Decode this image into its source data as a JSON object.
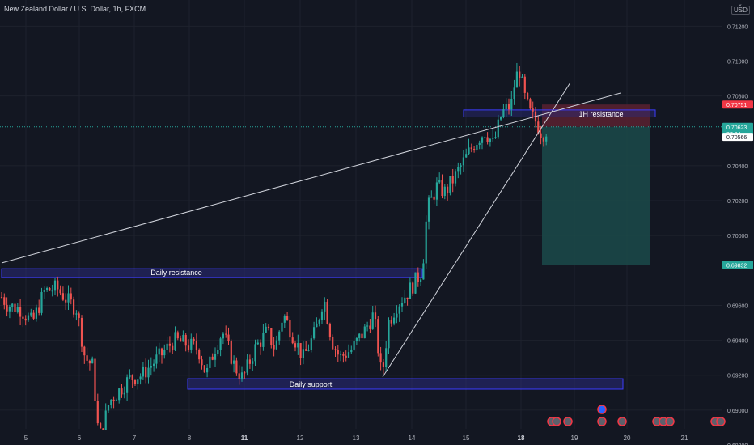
{
  "header": {
    "title": "New Zealand Dollar / U.S. Dollar, 1h, FXCM",
    "currency_button": "USD"
  },
  "colors": {
    "background": "#131722",
    "grid": "#1e222d",
    "up": "#26a69a",
    "down": "#ef5350",
    "zone_border": "#3d3dff",
    "zone_fill": "#2a2a7a",
    "stop_fill": "#5b2130",
    "target_fill": "#1b4a4a",
    "text": "#b2b5be",
    "line": "#d1d4dc"
  },
  "price_axis": {
    "min": 0.688,
    "max": 0.7135,
    "ticks": [
      "0.71200",
      "0.71000",
      "0.70800",
      "0.70400",
      "0.70200",
      "0.70000",
      "0.69600",
      "0.69400",
      "0.69200",
      "0.69000",
      "0.68800"
    ],
    "badges": [
      {
        "label": "0.70751",
        "value": 0.70751,
        "color": "#f23645",
        "sub": ""
      },
      {
        "label": "0.70623",
        "value": 0.70623,
        "color": "#26a69a",
        "sub": "37:34"
      },
      {
        "label": "0.70566",
        "value": 0.70566,
        "color": "#ffffff",
        "sub": ""
      },
      {
        "label": "0.69832",
        "value": 0.69832,
        "color": "#26a69a",
        "sub": ""
      }
    ]
  },
  "time_axis": {
    "labels": [
      "5",
      "6",
      "7",
      "8",
      "11",
      "12",
      "13",
      "14",
      "15",
      "18",
      "19",
      "20",
      "21"
    ],
    "bold": [
      "11",
      "18"
    ]
  },
  "annotations": {
    "daily_resistance": {
      "label": "Daily resistance",
      "top": 0.6981,
      "bottom": 0.6976
    },
    "hr_resistance": {
      "label": "1H resistance",
      "top": 0.7072,
      "bottom": 0.7068
    },
    "daily_support": {
      "label": "Daily support",
      "top": 0.6918,
      "bottom": 0.6912
    },
    "position": {
      "entry": 0.70623,
      "stop": 0.70751,
      "target": 0.69832
    }
  },
  "chart_data": {
    "type": "candlestick",
    "title": "New Zealand Dollar / U.S. Dollar, 1h, FXCM",
    "ylim": [
      0.688,
      0.7135
    ],
    "x_labels": [
      "5",
      "6",
      "7",
      "8",
      "11",
      "12",
      "13",
      "14",
      "15",
      "18",
      "19",
      "20",
      "21"
    ],
    "last_price": 0.70623,
    "path_points": [
      [
        0,
        0.6966
      ],
      [
        10,
        0.696
      ],
      [
        25,
        0.6958
      ],
      [
        40,
        0.695
      ],
      [
        55,
        0.6968
      ],
      [
        70,
        0.697
      ],
      [
        85,
        0.6962
      ],
      [
        95,
        0.6958
      ],
      [
        105,
        0.693
      ],
      [
        115,
        0.6925
      ],
      [
        120,
        0.6892
      ],
      [
        125,
        0.6885
      ],
      [
        135,
        0.6905
      ],
      [
        145,
        0.691
      ],
      [
        160,
        0.6918
      ],
      [
        175,
        0.692
      ],
      [
        185,
        0.6925
      ],
      [
        200,
        0.6932
      ],
      [
        215,
        0.694
      ],
      [
        230,
        0.6938
      ],
      [
        245,
        0.6935
      ],
      [
        255,
        0.692
      ],
      [
        265,
        0.6935
      ],
      [
        275,
        0.6945
      ],
      [
        290,
        0.6925
      ],
      [
        300,
        0.6918
      ],
      [
        315,
        0.6935
      ],
      [
        330,
        0.6945
      ],
      [
        340,
        0.6935
      ],
      [
        350,
        0.6955
      ],
      [
        365,
        0.694
      ],
      [
        375,
        0.693
      ],
      [
        390,
        0.6945
      ],
      [
        400,
        0.6965
      ],
      [
        410,
        0.694
      ],
      [
        420,
        0.693
      ],
      [
        435,
        0.6935
      ],
      [
        450,
        0.6945
      ],
      [
        462,
        0.6955
      ],
      [
        472,
        0.6918
      ],
      [
        480,
        0.695
      ],
      [
        490,
        0.696
      ],
      [
        505,
        0.6968
      ],
      [
        515,
        0.6975
      ],
      [
        522,
        0.698
      ],
      [
        528,
        0.7015
      ],
      [
        540,
        0.7028
      ],
      [
        550,
        0.7025
      ],
      [
        560,
        0.7032
      ],
      [
        570,
        0.704
      ],
      [
        580,
        0.7048
      ],
      [
        590,
        0.7055
      ],
      [
        600,
        0.706
      ],
      [
        610,
        0.7052
      ],
      [
        620,
        0.707
      ],
      [
        632,
        0.7075
      ],
      [
        637,
        0.709
      ],
      [
        642,
        0.7095
      ],
      [
        648,
        0.708
      ],
      [
        655,
        0.707
      ],
      [
        663,
        0.7065
      ],
      [
        670,
        0.7058
      ],
      [
        678,
        0.7062
      ]
    ]
  }
}
